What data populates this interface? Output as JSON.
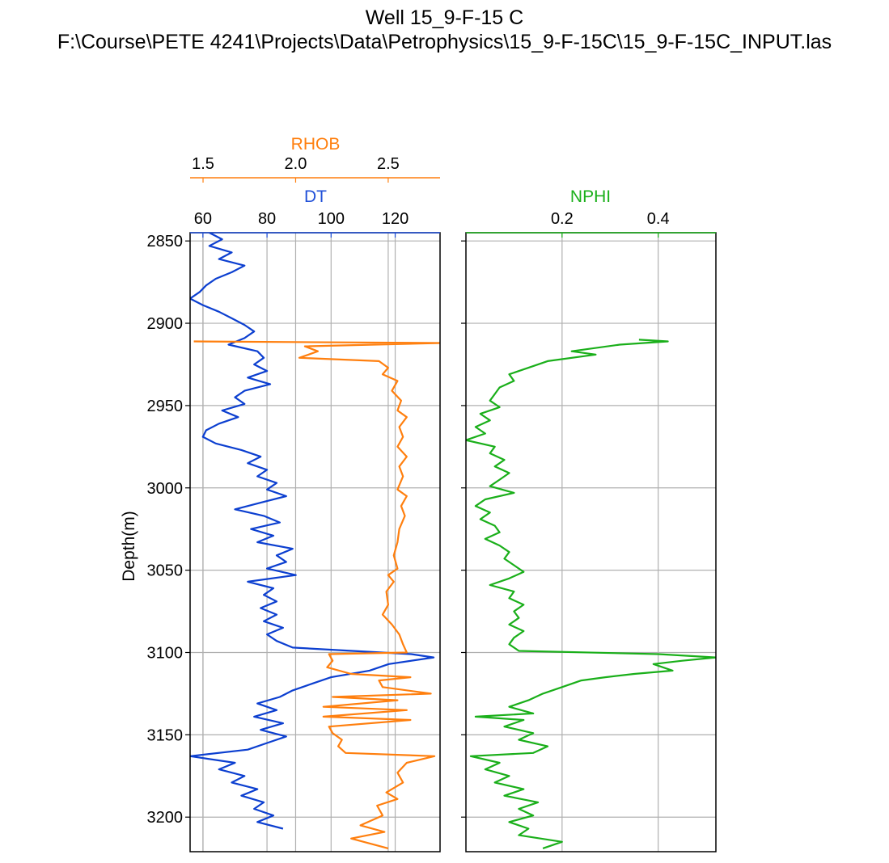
{
  "figure": {
    "title_line1": "Well 15_9-F-15 C",
    "title_line2": "F:\\Course\\PETE 4241\\Projects\\Data\\Petrophysics\\15_9-F-15C\\15_9-F-15C_INPUT.las"
  },
  "chart_data": [
    {
      "type": "line",
      "name": "track-1",
      "ylabel": "Depth(m)",
      "depth_range": [
        3221,
        2845
      ],
      "depth_ticks": [
        2850,
        2900,
        2950,
        3000,
        3050,
        3100,
        3150,
        3200
      ],
      "grid": true,
      "series": [
        {
          "name": "DT",
          "color": "#0c3fd0",
          "axis_label_color": "#1f4fd8",
          "xlim": [
            56,
            134
          ],
          "xticks": [
            60,
            80,
            100,
            120
          ],
          "points": [
            [
              2845,
              62
            ],
            [
              2849,
              66
            ],
            [
              2853,
              62
            ],
            [
              2857,
              69
            ],
            [
              2861,
              65
            ],
            [
              2865,
              73
            ],
            [
              2869,
              69
            ],
            [
              2873,
              64
            ],
            [
              2877,
              61
            ],
            [
              2881,
              59
            ],
            [
              2885,
              56
            ],
            [
              2889,
              60
            ],
            [
              2893,
              65
            ],
            [
              2897,
              69
            ],
            [
              2901,
              73
            ],
            [
              2905,
              76
            ],
            [
              2909,
              73
            ],
            [
              2913,
              68
            ],
            [
              2917,
              77
            ],
            [
              2921,
              79
            ],
            [
              2925,
              76
            ],
            [
              2929,
              80
            ],
            [
              2933,
              74
            ],
            [
              2937,
              81
            ],
            [
              2941,
              73
            ],
            [
              2945,
              70
            ],
            [
              2949,
              73
            ],
            [
              2953,
              66
            ],
            [
              2957,
              71
            ],
            [
              2961,
              65
            ],
            [
              2965,
              61
            ],
            [
              2969,
              60
            ],
            [
              2973,
              64
            ],
            [
              2977,
              72
            ],
            [
              2981,
              78
            ],
            [
              2985,
              74
            ],
            [
              2989,
              80
            ],
            [
              2993,
              77
            ],
            [
              2997,
              83
            ],
            [
              3001,
              80
            ],
            [
              3005,
              86
            ],
            [
              3009,
              78
            ],
            [
              3013,
              70
            ],
            [
              3017,
              79
            ],
            [
              3021,
              84
            ],
            [
              3025,
              75
            ],
            [
              3029,
              82
            ],
            [
              3033,
              77
            ],
            [
              3037,
              88
            ],
            [
              3041,
              83
            ],
            [
              3045,
              86
            ],
            [
              3049,
              80
            ],
            [
              3053,
              89
            ],
            [
              3057,
              74
            ],
            [
              3061,
              82
            ],
            [
              3065,
              79
            ],
            [
              3069,
              83
            ],
            [
              3073,
              78
            ],
            [
              3077,
              83
            ],
            [
              3081,
              79
            ],
            [
              3085,
              85
            ],
            [
              3089,
              80
            ],
            [
              3093,
              83
            ],
            [
              3097,
              88
            ],
            [
              3101,
              125
            ],
            [
              3103,
              132
            ],
            [
              3107,
              118
            ],
            [
              3111,
              112
            ],
            [
              3115,
              100
            ],
            [
              3119,
              94
            ],
            [
              3123,
              88
            ],
            [
              3127,
              84
            ],
            [
              3131,
              77
            ],
            [
              3135,
              83
            ],
            [
              3139,
              76
            ],
            [
              3143,
              85
            ],
            [
              3147,
              78
            ],
            [
              3151,
              86
            ],
            [
              3155,
              80
            ],
            [
              3159,
              74
            ],
            [
              3163,
              56
            ],
            [
              3167,
              70
            ],
            [
              3171,
              65
            ],
            [
              3175,
              73
            ],
            [
              3179,
              69
            ],
            [
              3183,
              77
            ],
            [
              3187,
              72
            ],
            [
              3191,
              79
            ],
            [
              3195,
              76
            ],
            [
              3199,
              82
            ],
            [
              3203,
              77
            ],
            [
              3207,
              85
            ]
          ]
        },
        {
          "name": "RHOB",
          "color": "#ff7f0e",
          "axis_label_color": "#ff7f0e",
          "xlim": [
            1.43,
            2.78
          ],
          "xticks": [
            1.5,
            2.0,
            2.5
          ],
          "points": [
            [
              2911,
              1.45
            ],
            [
              2912,
              2.78
            ],
            [
              2914,
              2.05
            ],
            [
              2917,
              2.12
            ],
            [
              2919,
              2.07
            ],
            [
              2921,
              2.02
            ],
            [
              2923,
              2.45
            ],
            [
              2927,
              2.5
            ],
            [
              2931,
              2.47
            ],
            [
              2935,
              2.55
            ],
            [
              2941,
              2.52
            ],
            [
              2947,
              2.57
            ],
            [
              2953,
              2.55
            ],
            [
              2957,
              2.6
            ],
            [
              2963,
              2.56
            ],
            [
              2969,
              2.58
            ],
            [
              2975,
              2.55
            ],
            [
              2981,
              2.6
            ],
            [
              2987,
              2.56
            ],
            [
              2993,
              2.58
            ],
            [
              3001,
              2.55
            ],
            [
              3005,
              2.6
            ],
            [
              3011,
              2.57
            ],
            [
              3017,
              2.59
            ],
            [
              3025,
              2.56
            ],
            [
              3033,
              2.55
            ],
            [
              3041,
              2.53
            ],
            [
              3049,
              2.55
            ],
            [
              3053,
              2.5
            ],
            [
              3057,
              2.53
            ],
            [
              3063,
              2.49
            ],
            [
              3071,
              2.5
            ],
            [
              3077,
              2.47
            ],
            [
              3083,
              2.52
            ],
            [
              3089,
              2.56
            ],
            [
              3095,
              2.58
            ],
            [
              3100,
              2.6
            ],
            [
              3101,
              2.18
            ],
            [
              3105,
              2.2
            ],
            [
              3109,
              2.17
            ],
            [
              3113,
              2.3
            ],
            [
              3115,
              2.62
            ],
            [
              3117,
              2.45
            ],
            [
              3121,
              2.47
            ],
            [
              3125,
              2.73
            ],
            [
              3127,
              2.2
            ],
            [
              3129,
              2.55
            ],
            [
              3133,
              2.15
            ],
            [
              3135,
              2.6
            ],
            [
              3139,
              2.15
            ],
            [
              3141,
              2.62
            ],
            [
              3145,
              2.18
            ],
            [
              3149,
              2.2
            ],
            [
              3153,
              2.25
            ],
            [
              3157,
              2.23
            ],
            [
              3161,
              2.27
            ],
            [
              3163,
              2.75
            ],
            [
              3167,
              2.6
            ],
            [
              3173,
              2.55
            ],
            [
              3179,
              2.58
            ],
            [
              3185,
              2.49
            ],
            [
              3189,
              2.55
            ],
            [
              3193,
              2.44
            ],
            [
              3199,
              2.47
            ],
            [
              3205,
              2.35
            ],
            [
              3209,
              2.48
            ],
            [
              3213,
              2.3
            ],
            [
              3219,
              2.5
            ]
          ]
        }
      ]
    },
    {
      "type": "line",
      "name": "track-2",
      "depth_range": [
        3221,
        2845
      ],
      "depth_ticks": [
        2850,
        2900,
        2950,
        3000,
        3050,
        3100,
        3150,
        3200
      ],
      "grid": true,
      "series": [
        {
          "name": "NPHI",
          "color": "#1aaf1a",
          "axis_label_color": "#1aaf1a",
          "xlim": [
            0.0,
            0.52
          ],
          "xticks": [
            0.2,
            0.4
          ],
          "points": [
            [
              2910,
              0.36
            ],
            [
              2911,
              0.42
            ],
            [
              2913,
              0.32
            ],
            [
              2917,
              0.22
            ],
            [
              2919,
              0.27
            ],
            [
              2923,
              0.17
            ],
            [
              2927,
              0.13
            ],
            [
              2931,
              0.09
            ],
            [
              2935,
              0.1
            ],
            [
              2939,
              0.07
            ],
            [
              2943,
              0.06
            ],
            [
              2947,
              0.05
            ],
            [
              2951,
              0.07
            ],
            [
              2955,
              0.03
            ],
            [
              2959,
              0.05
            ],
            [
              2963,
              0.02
            ],
            [
              2967,
              0.04
            ],
            [
              2971,
              0.0
            ],
            [
              2975,
              0.06
            ],
            [
              2979,
              0.05
            ],
            [
              2983,
              0.08
            ],
            [
              2987,
              0.06
            ],
            [
              2991,
              0.09
            ],
            [
              2995,
              0.07
            ],
            [
              2999,
              0.05
            ],
            [
              3003,
              0.1
            ],
            [
              3007,
              0.04
            ],
            [
              3011,
              0.02
            ],
            [
              3015,
              0.05
            ],
            [
              3019,
              0.03
            ],
            [
              3023,
              0.06
            ],
            [
              3027,
              0.07
            ],
            [
              3031,
              0.04
            ],
            [
              3035,
              0.07
            ],
            [
              3039,
              0.09
            ],
            [
              3043,
              0.08
            ],
            [
              3047,
              0.1
            ],
            [
              3051,
              0.12
            ],
            [
              3055,
              0.09
            ],
            [
              3059,
              0.05
            ],
            [
              3063,
              0.1
            ],
            [
              3067,
              0.09
            ],
            [
              3071,
              0.12
            ],
            [
              3075,
              0.1
            ],
            [
              3079,
              0.11
            ],
            [
              3083,
              0.09
            ],
            [
              3087,
              0.12
            ],
            [
              3091,
              0.1
            ],
            [
              3095,
              0.09
            ],
            [
              3099,
              0.11
            ],
            [
              3101,
              0.4
            ],
            [
              3103,
              0.52
            ],
            [
              3105,
              0.45
            ],
            [
              3107,
              0.39
            ],
            [
              3111,
              0.43
            ],
            [
              3113,
              0.35
            ],
            [
              3115,
              0.29
            ],
            [
              3117,
              0.24
            ],
            [
              3121,
              0.2
            ],
            [
              3125,
              0.16
            ],
            [
              3129,
              0.13
            ],
            [
              3133,
              0.09
            ],
            [
              3137,
              0.14
            ],
            [
              3139,
              0.02
            ],
            [
              3141,
              0.12
            ],
            [
              3145,
              0.08
            ],
            [
              3149,
              0.14
            ],
            [
              3153,
              0.11
            ],
            [
              3157,
              0.17
            ],
            [
              3161,
              0.14
            ],
            [
              3163,
              0.01
            ],
            [
              3167,
              0.07
            ],
            [
              3171,
              0.04
            ],
            [
              3175,
              0.09
            ],
            [
              3179,
              0.06
            ],
            [
              3183,
              0.12
            ],
            [
              3187,
              0.08
            ],
            [
              3191,
              0.15
            ],
            [
              3195,
              0.11
            ],
            [
              3199,
              0.14
            ],
            [
              3203,
              0.09
            ],
            [
              3207,
              0.13
            ],
            [
              3211,
              0.11
            ],
            [
              3215,
              0.2
            ],
            [
              3219,
              0.16
            ]
          ]
        }
      ]
    }
  ]
}
